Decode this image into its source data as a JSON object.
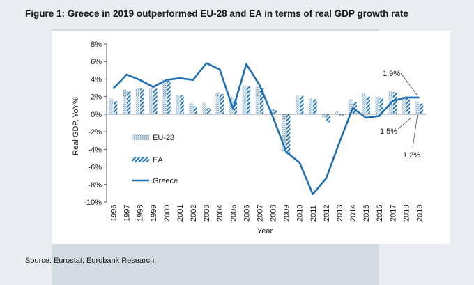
{
  "figure_title": "Figure 1: Greece in 2019 outperformed EU-28 and EA in terms of real GDP growth rate",
  "source_note": "Source: Eurostat, Eurobank Research.",
  "colors": {
    "greece_line": "#1f6fb2",
    "eu_bar": "#7fa8cc",
    "ea_bar": "#2c79b7",
    "axis": "#333333"
  },
  "chart_data": {
    "type": "bar",
    "title": "Figure 1: Greece in 2019 outperformed EU-28 and EA in terms of real GDP growth rate",
    "xlabel": "Year",
    "ylabel": "Real GDP, YoY%",
    "ylim": [
      -10,
      8
    ],
    "ytick_labels": [
      "8%",
      "6%",
      "4%",
      "2%",
      "0%",
      "-2%",
      "-4%",
      "-6%",
      "-8%",
      "-10%"
    ],
    "categories": [
      "1996",
      "1997",
      "1998",
      "1999",
      "2000",
      "2001",
      "2002",
      "2003",
      "2004",
      "2005",
      "2006",
      "2007",
      "2008",
      "2009",
      "2010",
      "2011",
      "2012",
      "2013",
      "2014",
      "2015",
      "2016",
      "2017",
      "2018",
      "2019"
    ],
    "series": [
      {
        "name": "EU-28",
        "kind": "bar",
        "values": [
          1.8,
          2.8,
          3.0,
          3.0,
          3.9,
          2.2,
          1.3,
          1.3,
          2.5,
          2.0,
          3.3,
          3.1,
          0.6,
          -4.3,
          2.1,
          1.8,
          -0.4,
          0.3,
          1.7,
          2.4,
          2.0,
          2.6,
          2.0,
          1.5
        ]
      },
      {
        "name": "EA",
        "kind": "bar",
        "values": [
          1.5,
          2.6,
          2.9,
          2.9,
          3.8,
          2.2,
          0.9,
          0.7,
          2.3,
          1.7,
          3.2,
          3.0,
          0.5,
          -4.5,
          2.1,
          1.7,
          -0.9,
          -0.2,
          1.4,
          2.0,
          1.9,
          2.5,
          1.9,
          1.2
        ]
      },
      {
        "name": "Greece",
        "kind": "line",
        "values": [
          2.9,
          4.5,
          3.9,
          3.1,
          3.9,
          4.1,
          3.9,
          5.8,
          5.1,
          0.6,
          5.7,
          3.3,
          -0.3,
          -4.3,
          -5.5,
          -9.1,
          -7.3,
          -3.2,
          0.7,
          -0.4,
          -0.2,
          1.5,
          1.9,
          1.9
        ]
      }
    ],
    "annotations": [
      {
        "text": "1.9%",
        "target_series": "Greece",
        "category": "2019"
      },
      {
        "text": "1.5%",
        "target_series": "EU-28",
        "category": "2019"
      },
      {
        "text": "1.2%",
        "target_series": "EA",
        "category": "2019"
      }
    ],
    "legend_position": "left, inside plot",
    "grid": false
  }
}
